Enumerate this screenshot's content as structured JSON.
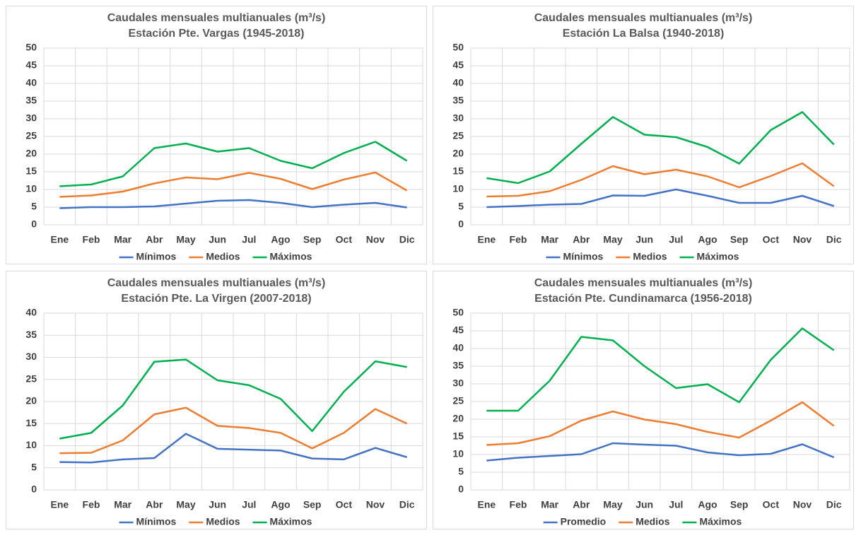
{
  "chart_data": [
    {
      "type": "line",
      "title": "Caudales mensuales multianuales (m³/s)",
      "subtitle": "Estación Pte. Vargas (1945-2018)",
      "categories": [
        "Ene",
        "Feb",
        "Mar",
        "Abr",
        "May",
        "Jun",
        "Jul",
        "Ago",
        "Sep",
        "Oct",
        "Nov",
        "Dic"
      ],
      "ylim": [
        0,
        50
      ],
      "yticks": [
        0,
        5,
        10,
        15,
        20,
        25,
        30,
        35,
        40,
        45,
        50
      ],
      "grid": true,
      "series": [
        {
          "name": "Mínimos",
          "color": "#4472c4",
          "values": [
            4.7,
            5.0,
            5.0,
            5.2,
            6.0,
            6.8,
            7.0,
            6.2,
            5.0,
            5.7,
            6.2,
            4.9
          ]
        },
        {
          "name": "Medios",
          "color": "#ed7d31",
          "values": [
            7.9,
            8.3,
            9.4,
            11.7,
            13.4,
            12.9,
            14.7,
            13.0,
            10.1,
            12.8,
            14.8,
            9.7
          ]
        },
        {
          "name": "Máximos",
          "color": "#00b050",
          "values": [
            10.9,
            11.4,
            13.7,
            21.7,
            23.0,
            20.7,
            21.7,
            18.1,
            16.0,
            20.3,
            23.5,
            18.1
          ]
        }
      ]
    },
    {
      "type": "line",
      "title": "Caudales mensuales multianuales (m³/s)",
      "subtitle": "Estación La Balsa (1940-2018)",
      "categories": [
        "Ene",
        "Feb",
        "Mar",
        "Abr",
        "May",
        "Jun",
        "Jul",
        "Ago",
        "Sep",
        "Oct",
        "Nov",
        "Dic"
      ],
      "ylim": [
        0,
        50
      ],
      "yticks": [
        0,
        5,
        10,
        15,
        20,
        25,
        30,
        35,
        40,
        45,
        50
      ],
      "grid": true,
      "series": [
        {
          "name": "Mínimos",
          "color": "#4472c4",
          "values": [
            5.0,
            5.3,
            5.7,
            5.9,
            8.3,
            8.2,
            10.0,
            8.2,
            6.2,
            6.2,
            8.2,
            5.3
          ]
        },
        {
          "name": "Medios",
          "color": "#ed7d31",
          "values": [
            8.0,
            8.2,
            9.5,
            12.7,
            16.6,
            14.3,
            15.6,
            13.7,
            10.6,
            13.8,
            17.4,
            10.9
          ]
        },
        {
          "name": "Máximos",
          "color": "#00b050",
          "values": [
            13.2,
            11.8,
            15.1,
            22.9,
            30.5,
            25.5,
            24.8,
            22.0,
            17.3,
            26.8,
            31.9,
            22.7
          ]
        }
      ]
    },
    {
      "type": "line",
      "title": "Caudales mensuales multianuales (m³/s)",
      "subtitle": "Estación Pte. La Virgen (2007-2018)",
      "categories": [
        "Ene",
        "Feb",
        "Mar",
        "Abr",
        "May",
        "Jun",
        "Jul",
        "Ago",
        "Sep",
        "Oct",
        "Nov",
        "Dic"
      ],
      "ylim": [
        0,
        40
      ],
      "yticks": [
        0,
        5,
        10,
        15,
        20,
        25,
        30,
        35,
        40
      ],
      "grid": true,
      "series": [
        {
          "name": "Mínimos",
          "color": "#4472c4",
          "values": [
            6.3,
            6.2,
            6.9,
            7.2,
            12.7,
            9.3,
            9.1,
            8.9,
            7.1,
            6.9,
            9.5,
            7.4
          ]
        },
        {
          "name": "Medios",
          "color": "#ed7d31",
          "values": [
            8.3,
            8.4,
            11.2,
            17.1,
            18.6,
            14.5,
            14.0,
            12.9,
            9.4,
            12.9,
            18.3,
            15.0
          ]
        },
        {
          "name": "Máximos",
          "color": "#00b050",
          "values": [
            11.6,
            12.9,
            19.1,
            29.0,
            29.5,
            24.8,
            23.7,
            20.6,
            13.3,
            22.2,
            29.1,
            27.8
          ]
        }
      ]
    },
    {
      "type": "line",
      "title": "Caudales mensuales multianuales (m³/s)",
      "subtitle": "Estación Pte. Cundinamarca (1956-2018)",
      "categories": [
        "Ene",
        "Feb",
        "Mar",
        "Abr",
        "May",
        "Jun",
        "Jul",
        "Ago",
        "Sep",
        "Oct",
        "Nov",
        "Dic"
      ],
      "ylim": [
        0,
        50
      ],
      "yticks": [
        0,
        5,
        10,
        15,
        20,
        25,
        30,
        35,
        40,
        45,
        50
      ],
      "grid": true,
      "series": [
        {
          "name": "Promedio",
          "color": "#4472c4",
          "values": [
            8.3,
            9.1,
            9.6,
            10.1,
            13.2,
            12.8,
            12.5,
            10.6,
            9.8,
            10.2,
            12.9,
            9.2
          ]
        },
        {
          "name": "Medios",
          "color": "#ed7d31",
          "values": [
            12.7,
            13.2,
            15.2,
            19.6,
            22.2,
            19.9,
            18.6,
            16.4,
            14.8,
            19.6,
            24.8,
            18.1
          ]
        },
        {
          "name": "Máximos",
          "color": "#00b050",
          "values": [
            22.4,
            22.4,
            30.9,
            43.3,
            42.3,
            35.0,
            28.8,
            29.9,
            24.8,
            36.8,
            45.7,
            39.5
          ]
        }
      ]
    }
  ]
}
